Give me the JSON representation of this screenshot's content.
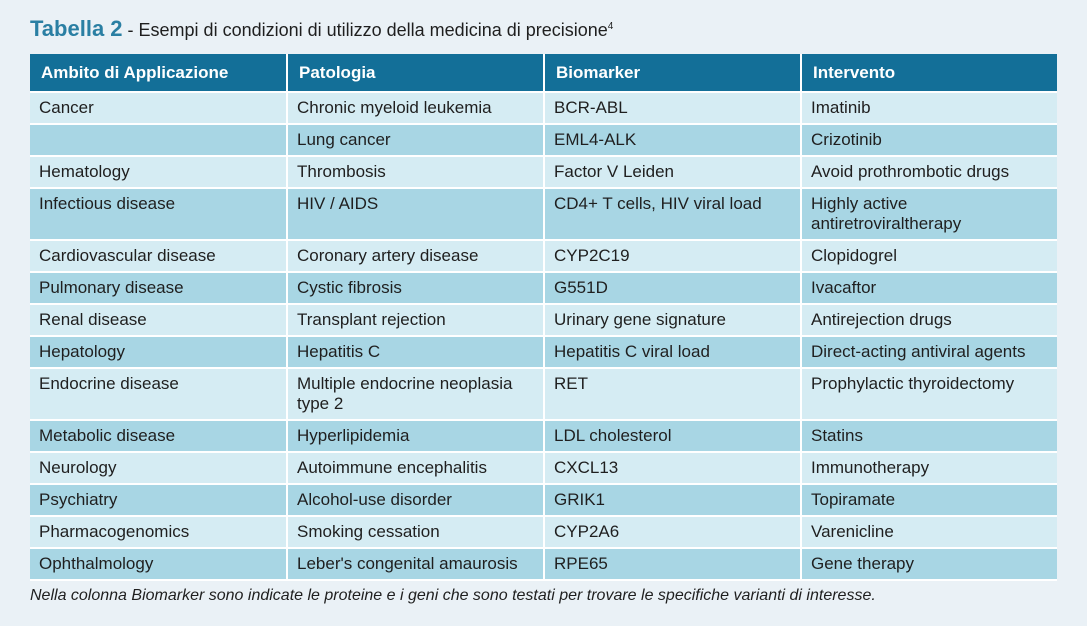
{
  "title": {
    "label": "Tabella 2",
    "separator": " - ",
    "text": "Esempi di condizioni di utilizzo della medicina di precisione",
    "superscript": "4"
  },
  "table": {
    "headers": [
      "Ambito di Applicazione",
      "Patologia",
      "Biomarker",
      "Intervento"
    ],
    "rows": [
      [
        "Cancer",
        "Chronic myeloid leukemia",
        "BCR-ABL",
        "Imatinib"
      ],
      [
        "",
        "Lung cancer",
        "EML4-ALK",
        "Crizotinib"
      ],
      [
        "Hematology",
        "Thrombosis",
        "Factor V Leiden",
        "Avoid prothrombotic drugs"
      ],
      [
        "Infectious disease",
        "HIV / AIDS",
        "CD4+ T cells, HIV viral load",
        "Highly active antiretroviraltherapy"
      ],
      [
        "Cardiovascular disease",
        "Coronary artery disease",
        "CYP2C19",
        "Clopidogrel"
      ],
      [
        "Pulmonary disease",
        "Cystic fibrosis",
        "G551D",
        "Ivacaftor"
      ],
      [
        "Renal disease",
        "Transplant rejection",
        "Urinary gene signature",
        "Antirejection drugs"
      ],
      [
        "Hepatology",
        "Hepatitis C",
        "Hepatitis C viral load",
        "Direct-acting antiviral agents"
      ],
      [
        "Endocrine disease",
        "Multiple endocrine neoplasia type 2",
        "RET",
        "Prophylactic thyroidectomy"
      ],
      [
        "Metabolic disease",
        "Hyperlipidemia",
        "LDL cholesterol",
        "Statins"
      ],
      [
        "Neurology",
        "Autoimmune encephalitis",
        "CXCL13",
        "Immunotherapy"
      ],
      [
        "Psychiatry",
        "Alcohol-use disorder",
        "GRIK1",
        "Topiramate"
      ],
      [
        "Pharmacogenomics",
        "Smoking cessation",
        "CYP2A6",
        "Varenicline"
      ],
      [
        "Ophthalmology",
        "Leber's congenital amaurosis",
        "RPE65",
        "Gene therapy"
      ]
    ]
  },
  "note": "Nella colonna Biomarker sono indicate le proteine e i geni che sono testati per trovare le specifiche varianti di interesse.",
  "colors": {
    "background": "#eaf1f6",
    "title_accent": "#2a7fa3",
    "header_bg": "#136f98",
    "row_light": "#d5ecf3",
    "row_dark": "#a8d6e4"
  }
}
